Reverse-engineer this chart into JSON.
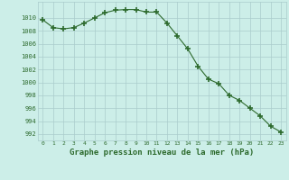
{
  "x": [
    0,
    1,
    2,
    3,
    4,
    5,
    6,
    7,
    8,
    9,
    10,
    11,
    12,
    13,
    14,
    15,
    16,
    17,
    18,
    19,
    20,
    21,
    22,
    23
  ],
  "y": [
    1009.7,
    1008.5,
    1008.3,
    1008.5,
    1009.2,
    1010.0,
    1010.8,
    1011.2,
    1011.3,
    1011.3,
    1010.9,
    1010.9,
    1009.2,
    1007.2,
    1005.2,
    1002.5,
    1000.5,
    999.8,
    998.0,
    997.2,
    996.0,
    994.8,
    993.2,
    992.3
  ],
  "line_color": "#2d6a2d",
  "marker": "+",
  "marker_size": 4,
  "marker_linewidth": 1.2,
  "bg_color": "#cceee8",
  "grid_color": "#aacccc",
  "xlabel": "Graphe pression niveau de la mer (hPa)",
  "ytick_labels": [
    992,
    994,
    996,
    998,
    1000,
    1002,
    1004,
    1006,
    1008,
    1010
  ],
  "ylim": [
    991.0,
    1012.5
  ],
  "xlim": [
    -0.5,
    23.5
  ],
  "tick_color": "#2d6a2d",
  "label_color": "#2d6a2d"
}
